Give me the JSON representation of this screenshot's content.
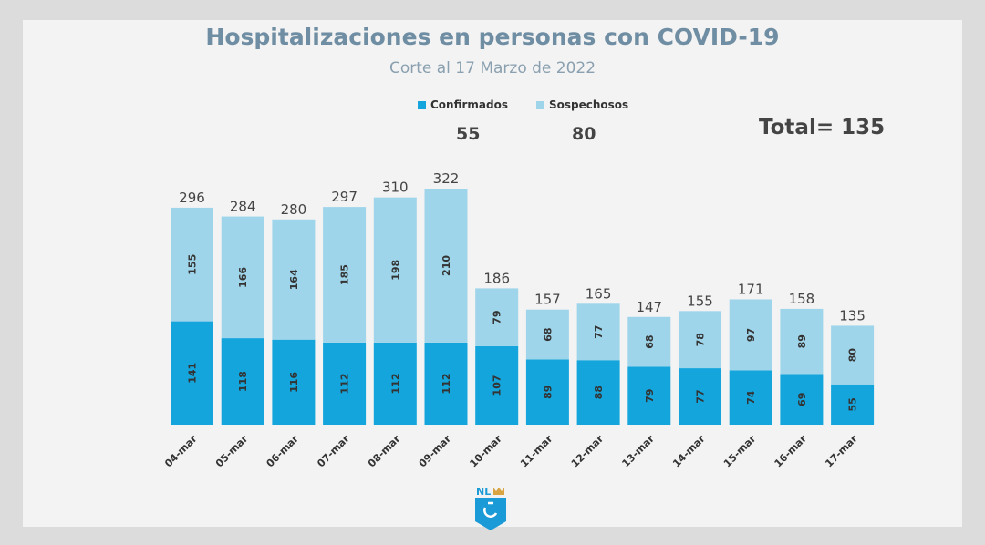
{
  "chart_data": {
    "type": "bar",
    "stacked": true,
    "title": "Hospitalizaciones en personas con COVID-19",
    "subtitle": "Corte al 17 Marzo de 2022",
    "categories": [
      "04-mar",
      "05-mar",
      "06-mar",
      "07-mar",
      "08-mar",
      "09-mar",
      "10-mar",
      "11-mar",
      "12-mar",
      "13-mar",
      "14-mar",
      "15-mar",
      "16-mar",
      "17-mar"
    ],
    "series": [
      {
        "name": "Confirmados",
        "color": "#14a5dc",
        "values": [
          141,
          118,
          116,
          112,
          112,
          112,
          107,
          89,
          88,
          79,
          77,
          74,
          69,
          55
        ]
      },
      {
        "name": "Sospechosos",
        "color": "#9fd5ea",
        "values": [
          155,
          166,
          164,
          185,
          198,
          210,
          79,
          68,
          77,
          68,
          78,
          97,
          89,
          80
        ]
      }
    ],
    "totals": [
      296,
      284,
      280,
      297,
      310,
      322,
      186,
      157,
      165,
      147,
      155,
      171,
      158,
      135
    ],
    "legend_position": "top",
    "legend_totals": [
      "55",
      "80"
    ],
    "total_label": "Total= 135",
    "grid": false,
    "ylim": [
      0,
      322
    ]
  },
  "logo": {
    "text": "NL"
  }
}
